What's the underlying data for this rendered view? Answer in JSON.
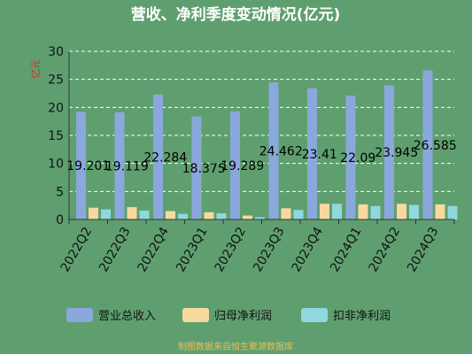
{
  "chart_data": {
    "type": "bar",
    "title": "营收、净利季度变动情况(亿元)",
    "unit_label": "亿元",
    "categories": [
      "2022Q2",
      "2022Q3",
      "2022Q4",
      "2023Q1",
      "2023Q2",
      "2023Q3",
      "2023Q4",
      "2024Q1",
      "2024Q2",
      "2024Q3"
    ],
    "series": [
      {
        "name": "营业总收入",
        "color": "#8aa8dc",
        "values": [
          19.201,
          19.119,
          22.284,
          18.375,
          19.289,
          24.462,
          23.41,
          22.09,
          23.945,
          26.585
        ]
      },
      {
        "name": "归母净利润",
        "color": "#f7d9a0",
        "values": [
          2.1,
          2.2,
          1.5,
          1.3,
          0.7,
          2.0,
          2.8,
          2.7,
          2.8,
          2.7
        ]
      },
      {
        "name": "扣非净利润",
        "color": "#8fd8de",
        "values": [
          1.8,
          1.6,
          1.0,
          1.1,
          0.4,
          1.7,
          2.8,
          2.4,
          2.6,
          2.4
        ]
      }
    ],
    "data_labels": [
      "19.201",
      "19.119",
      "22.284",
      "18.375",
      "19.289",
      "24.462",
      "23.41",
      "22.09",
      "23.945",
      "26.585"
    ],
    "ylim": [
      0,
      30
    ],
    "yticks": [
      0,
      5,
      10,
      15,
      20,
      25,
      30
    ],
    "grid": true,
    "legend_position": "bottom"
  },
  "footer": "制图数据来自恒生聚源数据库"
}
